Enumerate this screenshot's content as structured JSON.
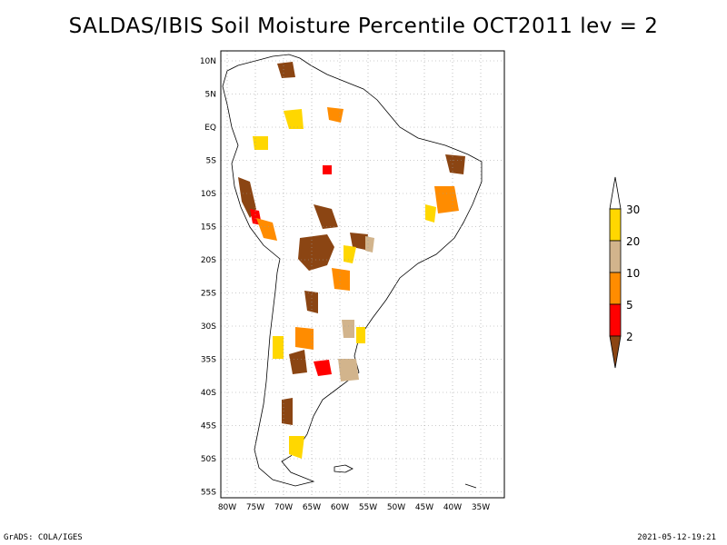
{
  "title": "SALDAS/IBIS Soil Moisture Percentile OCT2011 lev = 2",
  "footer": {
    "left": "GrADS: COLA/IGES",
    "right": "2021-05-12-19:21"
  },
  "axes": {
    "lat_labels": [
      "10N",
      "5N",
      "EQ",
      "5S",
      "10S",
      "15S",
      "20S",
      "25S",
      "30S",
      "35S",
      "40S",
      "45S",
      "50S",
      "55S"
    ],
    "lon_labels": [
      "80W",
      "75W",
      "70W",
      "65W",
      "60W",
      "55W",
      "50W",
      "45W",
      "40W",
      "35W"
    ]
  },
  "legend": {
    "labels": [
      "30",
      "20",
      "10",
      "5",
      "2"
    ],
    "colors": {
      "gt30": "#ffffff",
      "c20_30": "#ffd700",
      "c10_20": "#d2b48c",
      "c5_10": "#ff8c00",
      "c2_5": "#ff0000",
      "lt2": "#8b4513"
    }
  },
  "chart_data": {
    "type": "map",
    "variable": "Soil Moisture Percentile",
    "period": "OCT2011",
    "level": 2,
    "lon_range": [
      -81,
      -32
    ],
    "lat_range": [
      -56,
      11
    ],
    "categories": [
      {
        "range": ">30",
        "color": "#ffffff"
      },
      {
        "range": "20-30",
        "color": "#ffd700"
      },
      {
        "range": "10-20",
        "color": "#d2b48c"
      },
      {
        "range": "5-10",
        "color": "#ff8c00"
      },
      {
        "range": "2-5",
        "color": "#ff0000"
      },
      {
        "range": "<2",
        "color": "#8b4513"
      }
    ]
  }
}
